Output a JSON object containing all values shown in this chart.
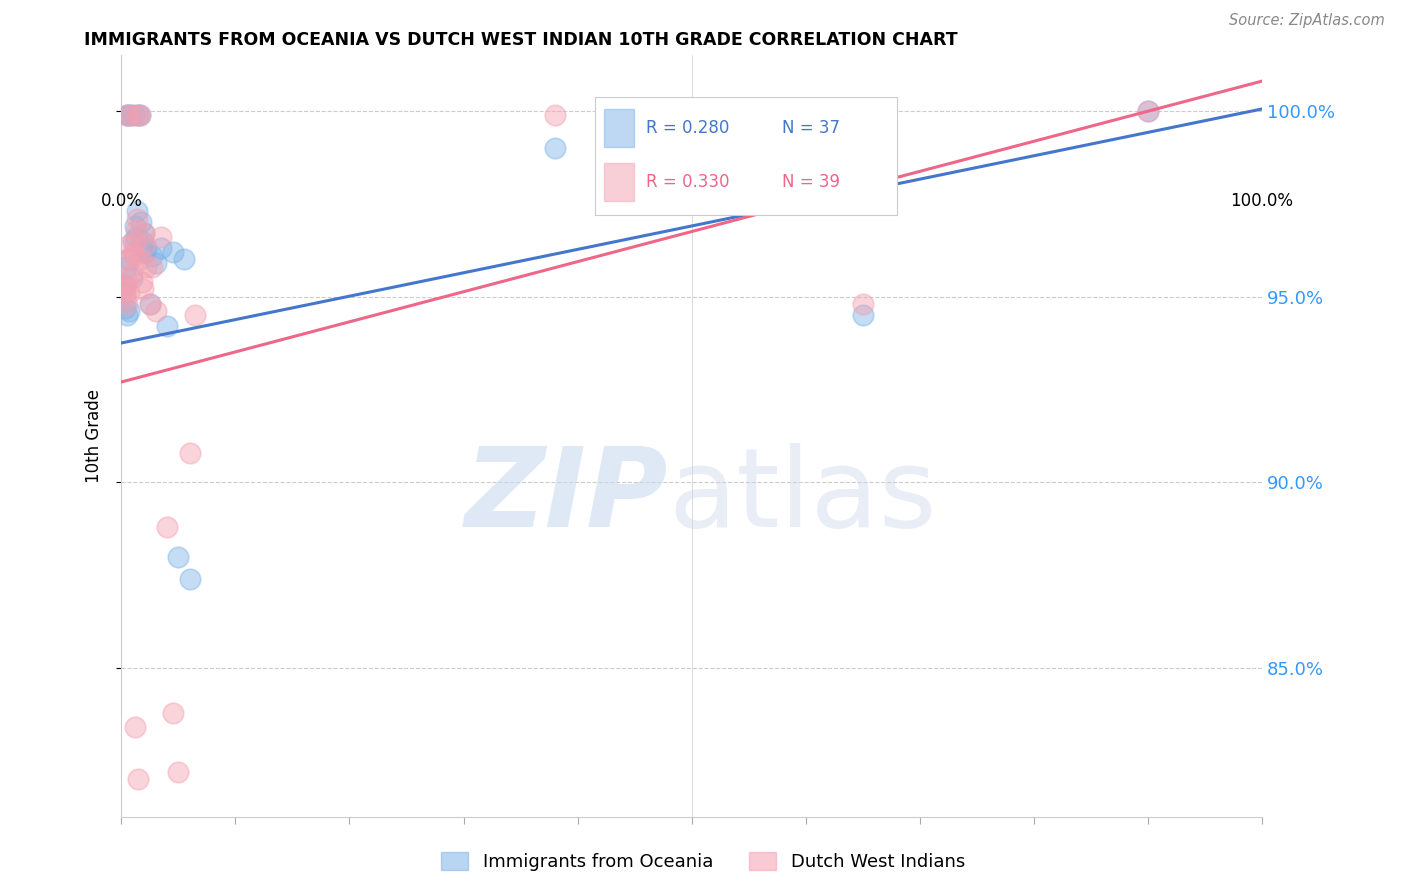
{
  "title": "IMMIGRANTS FROM OCEANIA VS DUTCH WEST INDIAN 10TH GRADE CORRELATION CHART",
  "source": "Source: ZipAtlas.com",
  "ylabel": "10th Grade",
  "xlim": [
    0.0,
    1.0
  ],
  "ylim": [
    0.81,
    1.015
  ],
  "yticks": [
    0.85,
    0.9,
    0.95,
    1.0
  ],
  "ytick_labels": [
    "85.0%",
    "90.0%",
    "95.0%",
    "100.0%"
  ],
  "blue_color": "#7EB3E8",
  "pink_color": "#F4A0B0",
  "blue_line_color": "#4477CC",
  "pink_line_color": "#EE6688",
  "blue_line_start": 0.9375,
  "blue_line_end": 1.0005,
  "pink_line_start": 0.927,
  "pink_line_end": 1.008,
  "blue_x": [
    0.002,
    0.003,
    0.004,
    0.005,
    0.006,
    0.007,
    0.008,
    0.009,
    0.01,
    0.011,
    0.012,
    0.013,
    0.014,
    0.015,
    0.016,
    0.017,
    0.018,
    0.019,
    0.02,
    0.021,
    0.022,
    0.025,
    0.027,
    0.03,
    0.035,
    0.04,
    0.045,
    0.05,
    0.055,
    0.06,
    0.38,
    0.55,
    0.65,
    0.9,
    0.003,
    0.005,
    0.007
  ],
  "blue_y": [
    0.953,
    0.951,
    0.958,
    0.999,
    0.999,
    0.96,
    0.999,
    0.955,
    0.965,
    0.999,
    0.969,
    0.966,
    0.973,
    0.999,
    0.999,
    0.97,
    0.965,
    0.962,
    0.967,
    0.962,
    0.963,
    0.948,
    0.961,
    0.959,
    0.963,
    0.942,
    0.962,
    0.88,
    0.96,
    0.874,
    0.99,
    0.999,
    0.945,
    1.0,
    0.947,
    0.945,
    0.946
  ],
  "pink_x": [
    0.002,
    0.003,
    0.004,
    0.005,
    0.006,
    0.007,
    0.008,
    0.009,
    0.01,
    0.011,
    0.012,
    0.013,
    0.014,
    0.015,
    0.016,
    0.017,
    0.018,
    0.019,
    0.02,
    0.021,
    0.022,
    0.025,
    0.027,
    0.03,
    0.035,
    0.04,
    0.045,
    0.05,
    0.06,
    0.065,
    0.38,
    0.55,
    0.65,
    0.9,
    0.003,
    0.005,
    0.007,
    0.012,
    0.015
  ],
  "pink_y": [
    0.952,
    0.953,
    0.955,
    0.999,
    0.96,
    0.964,
    0.999,
    0.956,
    0.962,
    0.961,
    0.965,
    0.968,
    0.971,
    0.999,
    0.999,
    0.96,
    0.954,
    0.952,
    0.967,
    0.964,
    0.958,
    0.948,
    0.958,
    0.946,
    0.966,
    0.888,
    0.838,
    0.822,
    0.908,
    0.945,
    0.999,
    0.999,
    0.948,
    1.0,
    0.95,
    0.948,
    0.951,
    0.834,
    0.82
  ],
  "watermark_zip": "ZIP",
  "watermark_atlas": "atlas"
}
